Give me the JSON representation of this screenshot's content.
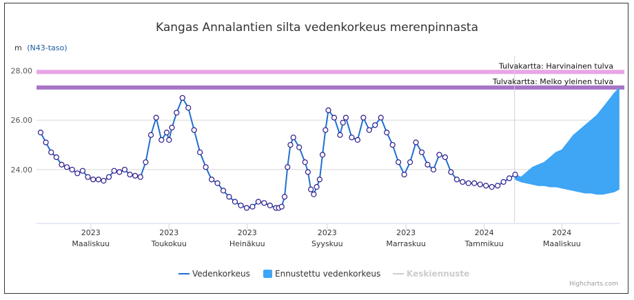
{
  "chart_data": {
    "type": "line",
    "title": "Kangas Annalantien silta vedenkorkeus merenpinnasta",
    "yunit": "m",
    "yunit_link": "(N43-taso)",
    "yticks": [
      "24.00",
      "26.00",
      "28.00"
    ],
    "ytick_values": [
      24,
      26,
      28
    ],
    "ylim": [
      21.85,
      28.6
    ],
    "xlim": [
      0,
      100
    ],
    "xticks": [
      {
        "x": 9.3,
        "year": "2023",
        "month": "Maaliskuu"
      },
      {
        "x": 22.7,
        "year": "2023",
        "month": "Toukokuu"
      },
      {
        "x": 36.1,
        "year": "2023",
        "month": "Heinäkuu"
      },
      {
        "x": 49.8,
        "year": "2023",
        "month": "Syyskuu"
      },
      {
        "x": 63.3,
        "year": "2023",
        "month": "Marraskuu"
      },
      {
        "x": 76.7,
        "year": "2024",
        "month": "Tammikuu"
      },
      {
        "x": 90.0,
        "year": "2024",
        "month": "Maaliskuu"
      }
    ],
    "plot_bands": [
      {
        "label": "Tulvakartta: Harvinainen tulva",
        "y": 27.95,
        "color": "#e8a5e6"
      },
      {
        "label": "Tulvakartta: Melko yleinen tulva",
        "y": 27.32,
        "color": "#a774c7"
      }
    ],
    "today_x": 81.9,
    "series": [
      {
        "name": "Vedenkorkeus",
        "color": "#1e6fcf",
        "x": [
          0.7,
          1.6,
          2.5,
          3.4,
          4.3,
          5.2,
          6.1,
          7.0,
          7.9,
          8.8,
          9.7,
          10.6,
          11.5,
          12.4,
          13.3,
          14.2,
          15.1,
          16.0,
          16.9,
          17.8,
          18.7,
          19.6,
          20.5,
          21.4,
          22.3,
          22.7,
          23.2,
          24.0,
          25.0,
          26.0,
          27.0,
          28.0,
          29.0,
          30.0,
          31.0,
          32.0,
          33.0,
          34.0,
          35.0,
          36.0,
          37.0,
          38.0,
          39.0,
          40.0,
          41.0,
          41.5,
          42.0,
          42.5,
          43.0,
          43.5,
          44.0,
          45.0,
          46.0,
          46.5,
          47.0,
          47.5,
          48.0,
          48.5,
          49.0,
          49.5,
          50.0,
          51.0,
          52.0,
          52.5,
          53.0,
          54.0,
          55.0,
          56.0,
          57.0,
          58.0,
          59.0,
          60.0,
          61.0,
          62.0,
          63.0,
          64.0,
          65.0,
          66.0,
          67.0,
          68.0,
          69.0,
          70.0,
          71.0,
          72.0,
          73.0,
          74.0,
          75.0,
          76.0,
          77.0,
          78.0,
          79.0,
          80.0,
          81.0,
          82.0
        ],
        "y": [
          25.5,
          25.1,
          24.7,
          24.5,
          24.2,
          24.1,
          24.0,
          23.85,
          23.95,
          23.7,
          23.6,
          23.6,
          23.55,
          23.7,
          23.95,
          23.9,
          24.0,
          23.8,
          23.75,
          23.7,
          24.3,
          25.4,
          26.1,
          25.2,
          25.5,
          25.2,
          25.7,
          26.3,
          26.9,
          26.5,
          25.6,
          24.7,
          24.1,
          23.6,
          23.45,
          23.15,
          22.9,
          22.7,
          22.55,
          22.45,
          22.5,
          22.7,
          22.65,
          22.55,
          22.45,
          22.45,
          22.5,
          22.9,
          24.1,
          25.0,
          25.3,
          24.9,
          24.3,
          23.9,
          23.2,
          23.0,
          23.3,
          23.6,
          24.6,
          25.6,
          26.4,
          26.1,
          25.4,
          25.9,
          26.1,
          25.3,
          25.2,
          26.1,
          25.6,
          25.8,
          26.1,
          25.5,
          25.0,
          24.3,
          23.8,
          24.3,
          25.1,
          24.7,
          24.2,
          24.0,
          24.6,
          24.5,
          23.9,
          23.6,
          23.5,
          23.45,
          23.45,
          23.4,
          23.35,
          23.3,
          23.35,
          23.5,
          23.65,
          23.8
        ]
      },
      {
        "name": "Ennustettu vedenkorkeus",
        "color": "#3fa5f5",
        "x": [
          82.0,
          83.0,
          84.0,
          85.0,
          86.0,
          87.0,
          88.0,
          89.0,
          90.0,
          91.0,
          92.0,
          93.0,
          94.0,
          95.0,
          96.0,
          97.0,
          98.0,
          99.0,
          99.8
        ],
        "high": [
          23.8,
          23.7,
          23.9,
          24.1,
          24.2,
          24.3,
          24.5,
          24.7,
          24.8,
          25.1,
          25.4,
          25.6,
          25.8,
          26.0,
          26.2,
          26.5,
          26.8,
          27.1,
          27.3
        ],
        "low": [
          23.6,
          23.5,
          23.45,
          23.4,
          23.35,
          23.35,
          23.3,
          23.3,
          23.25,
          23.2,
          23.15,
          23.1,
          23.05,
          23.05,
          23.0,
          23.0,
          23.05,
          23.1,
          23.2
        ]
      },
      {
        "name": "Keskiennuste",
        "color": "#cccccc"
      }
    ]
  },
  "credit": "Highcharts.com"
}
